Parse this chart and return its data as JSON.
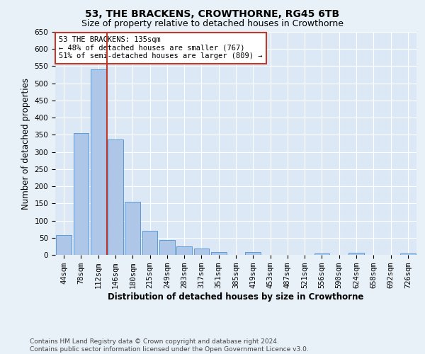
{
  "title": "53, THE BRACKENS, CROWTHORNE, RG45 6TB",
  "subtitle": "Size of property relative to detached houses in Crowthorne",
  "xlabel": "Distribution of detached houses by size in Crowthorne",
  "ylabel": "Number of detached properties",
  "categories": [
    "44sqm",
    "78sqm",
    "112sqm",
    "146sqm",
    "180sqm",
    "215sqm",
    "249sqm",
    "283sqm",
    "317sqm",
    "351sqm",
    "385sqm",
    "419sqm",
    "453sqm",
    "487sqm",
    "521sqm",
    "556sqm",
    "590sqm",
    "624sqm",
    "658sqm",
    "692sqm",
    "726sqm"
  ],
  "values": [
    58,
    355,
    540,
    337,
    155,
    70,
    43,
    25,
    18,
    8,
    0,
    8,
    0,
    0,
    0,
    5,
    0,
    7,
    0,
    0,
    5
  ],
  "bar_color": "#aec6e8",
  "bar_edge_color": "#5b9bd5",
  "ylim": [
    0,
    650
  ],
  "yticks": [
    0,
    50,
    100,
    150,
    200,
    250,
    300,
    350,
    400,
    450,
    500,
    550,
    600,
    650
  ],
  "vline_x": 2.5,
  "vline_color": "#c0392b",
  "annotation_text": "53 THE BRACKENS: 135sqm\n← 48% of detached houses are smaller (767)\n51% of semi-detached houses are larger (809) →",
  "annotation_box_color": "#ffffff",
  "annotation_box_edge": "#c0392b",
  "footer": "Contains HM Land Registry data © Crown copyright and database right 2024.\nContains public sector information licensed under the Open Government Licence v3.0.",
  "bg_color": "#e8f0f8",
  "plot_bg_color": "#dce8f5",
  "grid_color": "#ffffff",
  "title_fontsize": 10,
  "subtitle_fontsize": 9,
  "axis_label_fontsize": 8.5,
  "tick_fontsize": 7.5,
  "footer_fontsize": 6.5,
  "annotation_fontsize": 7.5
}
